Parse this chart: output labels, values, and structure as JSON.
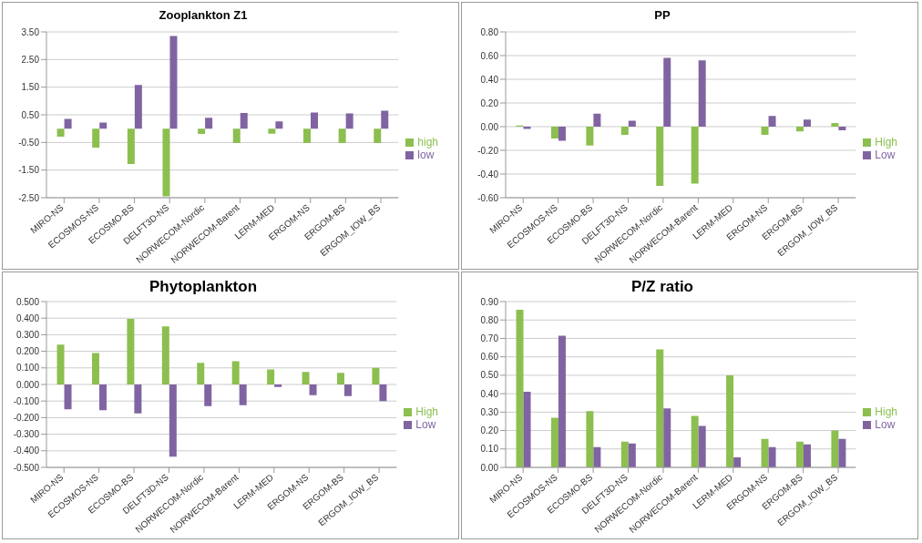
{
  "chart_data": [
    {
      "type": "bar",
      "title": "Zooplankton Z1",
      "categories": [
        "MIRO-NS",
        "ECOSMOS-NS",
        "ECOSMO-BS",
        "DELFT3D-NS",
        "NORWECOM-Nordic",
        "NORWECOM-Barent",
        "LERM-MED",
        "ERGOM-NS",
        "ERGOM-BS",
        "ERGOM_IOW_BS"
      ],
      "series": [
        {
          "name": "high",
          "color": "#8cbf4f",
          "values": [
            -0.29,
            -0.69,
            -1.28,
            -2.45,
            -0.19,
            -0.52,
            -0.18,
            -0.52,
            -0.52,
            -0.52
          ]
        },
        {
          "name": "low",
          "color": "#8064a2",
          "values": [
            0.35,
            0.22,
            1.58,
            3.35,
            0.39,
            0.57,
            0.26,
            0.58,
            0.55,
            0.65
          ]
        }
      ],
      "ylim": [
        -2.5,
        3.5
      ],
      "yticks": [
        {
          "value": -2.5,
          "label": "-2.50"
        },
        {
          "value": -1.5,
          "label": "-1.50"
        },
        {
          "value": -0.5,
          "label": "-0.50"
        },
        {
          "value": 0.5,
          "label": "0.50"
        },
        {
          "value": 1.5,
          "label": "1.50"
        },
        {
          "value": 2.5,
          "label": "2.50"
        },
        {
          "value": 3.5,
          "label": "3.50"
        }
      ],
      "grid": "y",
      "legend": "right"
    },
    {
      "type": "bar",
      "title": "PP",
      "categories": [
        "MIRO-NS",
        "ECOSMOS-NS",
        "ECOSMO-BS",
        "DELFT3D-NS",
        "NORWECOM-Nordic",
        "NORWECOM-Barent",
        "LERM-MED",
        "ERGOM-NS",
        "ERGOM-BS",
        "ERGOM_IOW_BS"
      ],
      "series": [
        {
          "name": "High",
          "color": "#8cbf4f",
          "values": [
            0.01,
            -0.1,
            -0.16,
            -0.07,
            -0.5,
            -0.48,
            0,
            -0.07,
            -0.04,
            0.03
          ]
        },
        {
          "name": "Low",
          "color": "#8064a2",
          "values": [
            -0.02,
            -0.12,
            0.11,
            0.05,
            0.58,
            0.56,
            0,
            0.09,
            0.06,
            -0.03
          ]
        }
      ],
      "ylim": [
        -0.6,
        0.8
      ],
      "yticks": [
        {
          "value": -0.6,
          "label": "-0.60"
        },
        {
          "value": -0.4,
          "label": "-0.40"
        },
        {
          "value": -0.2,
          "label": "-0.20"
        },
        {
          "value": 0,
          "label": "0.00"
        },
        {
          "value": 0.2,
          "label": "0.20"
        },
        {
          "value": 0.4,
          "label": "0.40"
        },
        {
          "value": 0.6,
          "label": "0.60"
        },
        {
          "value": 0.8,
          "label": "0.80"
        }
      ],
      "grid": "y",
      "legend": "right"
    },
    {
      "type": "bar",
      "title": "Phytoplankton",
      "categories": [
        "MIRO-NS",
        "ECOSMOS-NS",
        "ECOSMO-BS",
        "DELFT3D-NS",
        "NORWECOM-Nordic",
        "NORWECOM-Barent",
        "LERM-MED",
        "ERGOM-NS",
        "ERGOM-BS",
        "ERGOM_IOW_BS"
      ],
      "series": [
        {
          "name": "High",
          "color": "#8cbf4f",
          "values": [
            0.24,
            0.19,
            0.395,
            0.35,
            0.13,
            0.14,
            0.09,
            0.075,
            0.07,
            0.1
          ]
        },
        {
          "name": "Low",
          "color": "#8064a2",
          "values": [
            -0.15,
            -0.155,
            -0.175,
            -0.435,
            -0.13,
            -0.125,
            -0.015,
            -0.065,
            -0.07,
            -0.1
          ]
        }
      ],
      "ylim": [
        -0.5,
        0.5
      ],
      "yticks": [
        {
          "value": -0.5,
          "label": "-0.500"
        },
        {
          "value": -0.4,
          "label": "-0.400"
        },
        {
          "value": -0.3,
          "label": "-0.300"
        },
        {
          "value": -0.2,
          "label": "-0.200"
        },
        {
          "value": -0.1,
          "label": "-0.100"
        },
        {
          "value": 0,
          "label": "0.000"
        },
        {
          "value": 0.1,
          "label": "0.100"
        },
        {
          "value": 0.2,
          "label": "0.200"
        },
        {
          "value": 0.3,
          "label": "0.300"
        },
        {
          "value": 0.4,
          "label": "0.400"
        },
        {
          "value": 0.5,
          "label": "0.500"
        }
      ],
      "grid": "y",
      "legend": "right"
    },
    {
      "type": "bar",
      "title": "P/Z ratio",
      "categories": [
        "MIRO-NS",
        "ECOSMOS-NS",
        "ECOSMO-BS",
        "DELFT3D-NS",
        "NORWECOM-Nordic",
        "NORWECOM-Barent",
        "LERM-MED",
        "ERGOM-NS",
        "ERGOM-BS",
        "ERGOM_IOW_BS"
      ],
      "series": [
        {
          "name": "High",
          "color": "#8cbf4f",
          "values": [
            0.855,
            0.27,
            0.305,
            0.14,
            0.64,
            0.28,
            0.5,
            0.155,
            0.14,
            0.2
          ]
        },
        {
          "name": "Low",
          "color": "#8064a2",
          "values": [
            0.41,
            0.715,
            0.11,
            0.13,
            0.32,
            0.225,
            0.055,
            0.11,
            0.125,
            0.155
          ]
        }
      ],
      "ylim": [
        0,
        0.9
      ],
      "yticks": [
        {
          "value": 0,
          "label": "0.00"
        },
        {
          "value": 0.1,
          "label": "0.10"
        },
        {
          "value": 0.2,
          "label": "0.20"
        },
        {
          "value": 0.3,
          "label": "0.30"
        },
        {
          "value": 0.4,
          "label": "0.40"
        },
        {
          "value": 0.5,
          "label": "0.50"
        },
        {
          "value": 0.6,
          "label": "0.60"
        },
        {
          "value": 0.7,
          "label": "0.70"
        },
        {
          "value": 0.8,
          "label": "0.80"
        },
        {
          "value": 0.9,
          "label": "0.90"
        }
      ],
      "grid": "y",
      "legend": "right"
    }
  ]
}
